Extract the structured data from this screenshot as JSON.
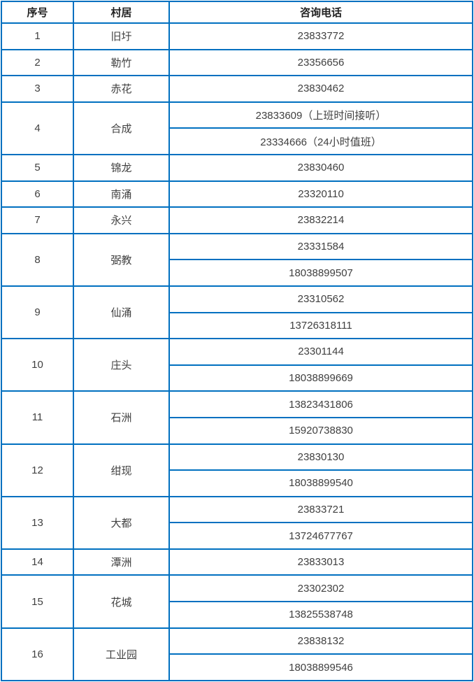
{
  "colors": {
    "border": "#0070C0",
    "header_text": "#212121",
    "body_text": "#404040",
    "background": "#ffffff"
  },
  "table": {
    "headers": {
      "no": "序号",
      "village": "村居",
      "phone": "咨询电话"
    },
    "rows": [
      {
        "no": "1",
        "village": "旧圩",
        "phones": [
          "23833772"
        ]
      },
      {
        "no": "2",
        "village": "勒竹",
        "phones": [
          "23356656"
        ]
      },
      {
        "no": "3",
        "village": "赤花",
        "phones": [
          "23830462"
        ]
      },
      {
        "no": "4",
        "village": "合成",
        "phones": [
          "23833609（上班时间接听）",
          "23334666（24小时值班）"
        ]
      },
      {
        "no": "5",
        "village": "锦龙",
        "phones": [
          "23830460"
        ]
      },
      {
        "no": "6",
        "village": "南涌",
        "phones": [
          "23320110"
        ]
      },
      {
        "no": "7",
        "village": "永兴",
        "phones": [
          "23832214"
        ]
      },
      {
        "no": "8",
        "village": "弼教",
        "phones": [
          "23331584",
          "18038899507"
        ]
      },
      {
        "no": "9",
        "village": "仙涌",
        "phones": [
          "23310562",
          "13726318111"
        ]
      },
      {
        "no": "10",
        "village": "庄头",
        "phones": [
          "23301144",
          "18038899669"
        ]
      },
      {
        "no": "11",
        "village": "石洲",
        "phones": [
          "13823431806",
          "15920738830"
        ]
      },
      {
        "no": "12",
        "village": "绀现",
        "phones": [
          "23830130",
          "18038899540"
        ]
      },
      {
        "no": "13",
        "village": "大都",
        "phones": [
          "23833721",
          "13724677767"
        ]
      },
      {
        "no": "14",
        "village": "潭洲",
        "phones": [
          "23833013"
        ]
      },
      {
        "no": "15",
        "village": "花城",
        "phones": [
          "23302302",
          "13825538748"
        ]
      },
      {
        "no": "16",
        "village": "工业园",
        "phones": [
          "23838132",
          "18038899546"
        ]
      }
    ]
  }
}
